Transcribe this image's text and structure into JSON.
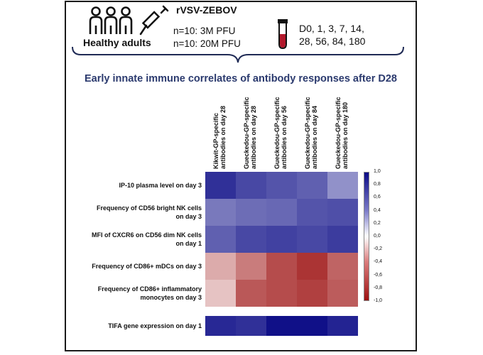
{
  "header": {
    "adults_label": "Healthy adults",
    "vaccine": "rVSV-ZEBOV",
    "dose_lines": [
      "n=10: 3M PFU",
      "n=10: 20M PFU"
    ],
    "timepoint_lines": [
      "D0, 1, 3,  7, 14,",
      "28, 56, 84, 180"
    ]
  },
  "heading": "Early innate immune correlates of antibody responses after D28",
  "icons": {
    "people": "people-group-icon",
    "syringe": "syringe-icon",
    "tube": "blood-tube-icon",
    "brace": "curly-brace-icon"
  },
  "chart_data": {
    "type": "heatmap",
    "columns": [
      [
        "Kikwit-GP-specific",
        "antibodies on day 28"
      ],
      [
        "Gueckedou-GP-specific",
        "antibodies on day 28"
      ],
      [
        "Gueckedou-GP-specific",
        "antibodies on day 56"
      ],
      [
        "Gueckedou-GP-specific",
        "antibodies on day 84"
      ],
      [
        "Gueckedou-GP-specific",
        "antibodies on day 180"
      ]
    ],
    "rows": [
      [
        "IP-10 plasma level on day 3"
      ],
      [
        "Frequency of CD56 bright NK cells",
        "on day 3"
      ],
      [
        "MFI of CXCR6 on CD56 dim NK cells",
        "on day 1"
      ],
      [
        "Frequency of CD86+ mDCs on day 3"
      ],
      [
        "Frequency of CD86+ inflammatory",
        "monocytes on day 3"
      ],
      [
        "TIFA gene expression on day 1"
      ]
    ],
    "values": [
      [
        0.85,
        0.75,
        0.7,
        0.65,
        0.45
      ],
      [
        0.55,
        0.6,
        0.62,
        0.7,
        0.72
      ],
      [
        0.65,
        0.75,
        0.78,
        0.75,
        0.8
      ],
      [
        -0.35,
        -0.55,
        -0.75,
        -0.85,
        -0.65
      ],
      [
        -0.25,
        -0.7,
        -0.75,
        -0.8,
        -0.68
      ],
      [
        0.88,
        0.85,
        0.98,
        0.98,
        0.9
      ]
    ],
    "colorbar_ticks": [
      "1,0",
      "0,8",
      "0,6",
      "0,4",
      "0,2",
      "0,0",
      "-0,2",
      "-0,4",
      "-0,6",
      "-0,8",
      "-1,0"
    ],
    "range": [
      -1,
      1
    ],
    "colors": {
      "positive": "#0b0b86",
      "zero": "#ffffff",
      "negative": "#9c1010"
    }
  }
}
